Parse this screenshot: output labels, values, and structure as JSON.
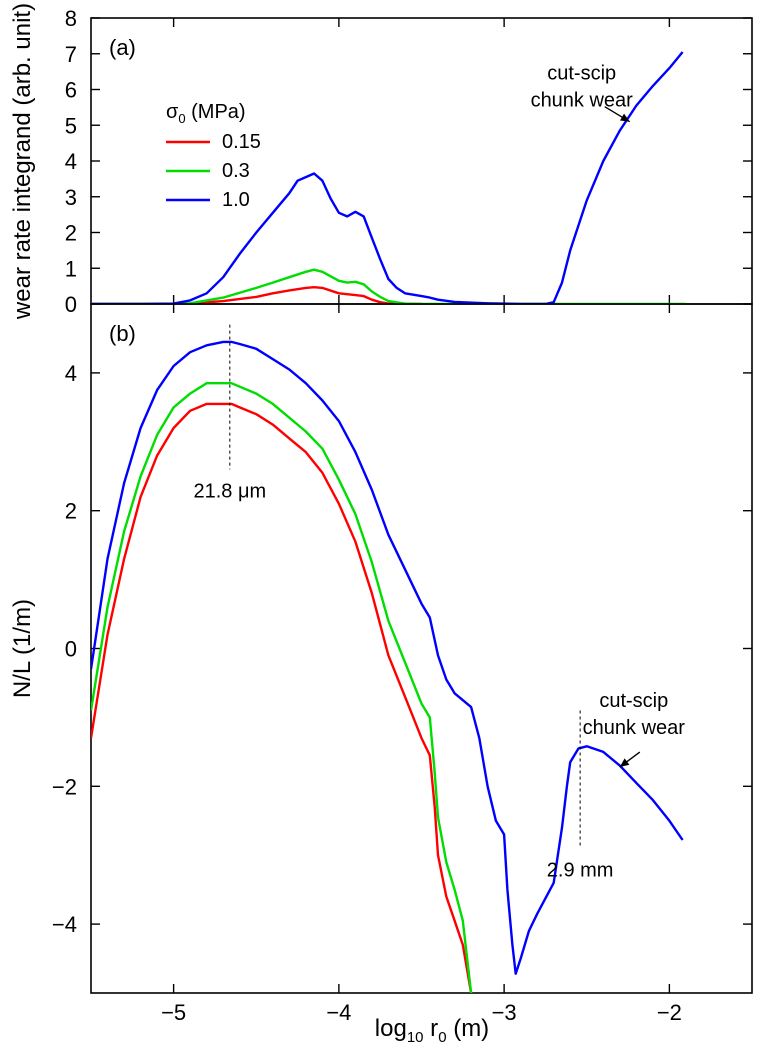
{
  "chart_data": [
    {
      "panel": "a",
      "type": "line",
      "panel_label": "(a)",
      "ylabel": "wear rate integrand  (arb. unit)",
      "xlim": [
        -5.5,
        -1.5
      ],
      "ylim": [
        0,
        8
      ],
      "xticks": [
        -5,
        -4,
        -3,
        -2
      ],
      "yticks": [
        0,
        1,
        2,
        3,
        4,
        5,
        6,
        7,
        8
      ],
      "legend": {
        "title_symbol": "σ",
        "title_subscript": "0",
        "title_rest": " (MPa)",
        "placement": "upper-left"
      },
      "series": [
        {
          "name": "0.15",
          "color": "#ff0000",
          "x": [
            -5.5,
            -5.2,
            -5.0,
            -4.9,
            -4.7,
            -4.5,
            -4.4,
            -4.3,
            -4.2,
            -4.15,
            -4.1,
            -4.0,
            -3.9,
            -3.85,
            -3.8,
            -3.75,
            -3.7,
            -3.6,
            -3.5
          ],
          "y": [
            0,
            0,
            0,
            0.01,
            0.08,
            0.2,
            0.3,
            0.38,
            0.45,
            0.47,
            0.45,
            0.3,
            0.25,
            0.22,
            0.12,
            0.05,
            0.01,
            0,
            0
          ]
        },
        {
          "name": "0.3",
          "color": "#00dd00",
          "x": [
            -5.5,
            -5.2,
            -5.0,
            -4.9,
            -4.7,
            -4.5,
            -4.4,
            -4.3,
            -4.2,
            -4.15,
            -4.1,
            -4.0,
            -3.95,
            -3.9,
            -3.85,
            -3.8,
            -3.75,
            -3.7,
            -3.6,
            -3.5,
            -3.0,
            -2.0,
            -1.9
          ],
          "y": [
            0,
            0,
            0,
            0.02,
            0.18,
            0.45,
            0.6,
            0.75,
            0.9,
            0.96,
            0.9,
            0.65,
            0.6,
            0.62,
            0.55,
            0.35,
            0.2,
            0.08,
            0.01,
            0,
            0,
            0,
            0
          ]
        },
        {
          "name": "1.0",
          "color": "#0000ff",
          "x": [
            -5.5,
            -5.2,
            -5.0,
            -4.9,
            -4.8,
            -4.7,
            -4.6,
            -4.5,
            -4.4,
            -4.3,
            -4.25,
            -4.2,
            -4.15,
            -4.1,
            -4.05,
            -4.0,
            -3.95,
            -3.9,
            -3.85,
            -3.8,
            -3.75,
            -3.7,
            -3.65,
            -3.6,
            -3.5,
            -3.45,
            -3.4,
            -3.3,
            -3.1,
            -2.9,
            -2.75,
            -2.7,
            -2.65,
            -2.6,
            -2.5,
            -2.4,
            -2.3,
            -2.2,
            -2.1,
            -2.0,
            -1.92
          ],
          "y": [
            0,
            0,
            0.01,
            0.1,
            0.3,
            0.75,
            1.4,
            2.0,
            2.55,
            3.1,
            3.45,
            3.55,
            3.65,
            3.45,
            2.95,
            2.55,
            2.45,
            2.58,
            2.45,
            1.85,
            1.25,
            0.7,
            0.45,
            0.3,
            0.22,
            0.18,
            0.12,
            0.06,
            0.02,
            0,
            0,
            0.05,
            0.6,
            1.5,
            2.9,
            4.0,
            4.85,
            5.55,
            6.1,
            6.6,
            7.05
          ]
        }
      ],
      "annotations": [
        {
          "lines": [
            "cut-scip",
            "chunk wear"
          ],
          "target_x": -2.24,
          "target_y": 5.1
        }
      ]
    },
    {
      "panel": "b",
      "type": "line",
      "panel_label": "(b)",
      "xlabel_main": "log",
      "xlabel_sub1": "10",
      "xlabel_r": " r",
      "xlabel_sub2": "0",
      "xlabel_unit": "  (m)",
      "ylabel": "N/L  (1/m)",
      "xlim": [
        -5.5,
        -1.5
      ],
      "ylim": [
        -5,
        5
      ],
      "xticks": [
        -5,
        -4,
        -3,
        -2
      ],
      "yticks": [
        -4,
        -2,
        0,
        2,
        4
      ],
      "series": [
        {
          "name": "0.15",
          "color": "#ff0000",
          "x": [
            -5.5,
            -5.4,
            -5.3,
            -5.2,
            -5.1,
            -5.0,
            -4.9,
            -4.8,
            -4.7,
            -4.65,
            -4.6,
            -4.5,
            -4.4,
            -4.3,
            -4.2,
            -4.1,
            -4.0,
            -3.9,
            -3.8,
            -3.7,
            -3.6,
            -3.5,
            -3.45,
            -3.42,
            -3.4,
            -3.35,
            -3.3,
            -3.25,
            -3.2
          ],
          "y": [
            -1.3,
            0.2,
            1.3,
            2.2,
            2.8,
            3.2,
            3.45,
            3.55,
            3.55,
            3.55,
            3.5,
            3.4,
            3.25,
            3.05,
            2.85,
            2.55,
            2.1,
            1.55,
            0.8,
            -0.1,
            -0.7,
            -1.3,
            -1.55,
            -2.3,
            -3.0,
            -3.6,
            -3.95,
            -4.3,
            -5.0
          ]
        },
        {
          "name": "0.3",
          "color": "#00dd00",
          "x": [
            -5.5,
            -5.4,
            -5.3,
            -5.2,
            -5.1,
            -5.0,
            -4.9,
            -4.8,
            -4.7,
            -4.65,
            -4.6,
            -4.5,
            -4.4,
            -4.3,
            -4.2,
            -4.1,
            -4.0,
            -3.9,
            -3.8,
            -3.7,
            -3.6,
            -3.5,
            -3.45,
            -3.42,
            -3.4,
            -3.35,
            -3.3,
            -3.25,
            -3.2
          ],
          "y": [
            -0.9,
            0.6,
            1.7,
            2.5,
            3.1,
            3.5,
            3.7,
            3.85,
            3.85,
            3.85,
            3.8,
            3.7,
            3.55,
            3.35,
            3.15,
            2.9,
            2.45,
            1.95,
            1.25,
            0.4,
            -0.2,
            -0.8,
            -1.0,
            -1.8,
            -2.45,
            -3.1,
            -3.5,
            -3.95,
            -5.0
          ]
        },
        {
          "name": "1.0",
          "color": "#0000ff",
          "x": [
            -5.5,
            -5.4,
            -5.3,
            -5.2,
            -5.1,
            -5.0,
            -4.9,
            -4.8,
            -4.7,
            -4.65,
            -4.6,
            -4.5,
            -4.4,
            -4.3,
            -4.2,
            -4.1,
            -4.0,
            -3.9,
            -3.8,
            -3.7,
            -3.6,
            -3.5,
            -3.45,
            -3.4,
            -3.35,
            -3.3,
            -3.2,
            -3.15,
            -3.1,
            -3.05,
            -3.0,
            -2.98,
            -2.95,
            -2.93,
            -2.9,
            -2.85,
            -2.8,
            -2.7,
            -2.65,
            -2.62,
            -2.6,
            -2.55,
            -2.5,
            -2.4,
            -2.3,
            -2.2,
            -2.1,
            -2.0,
            -1.92
          ],
          "y": [
            -0.3,
            1.3,
            2.4,
            3.2,
            3.75,
            4.1,
            4.3,
            4.4,
            4.45,
            4.45,
            4.42,
            4.35,
            4.2,
            4.05,
            3.85,
            3.6,
            3.3,
            2.85,
            2.3,
            1.65,
            1.15,
            0.65,
            0.45,
            -0.1,
            -0.45,
            -0.65,
            -0.85,
            -1.3,
            -2.0,
            -2.5,
            -2.7,
            -3.5,
            -4.3,
            -4.72,
            -4.5,
            -4.1,
            -3.85,
            -3.4,
            -2.6,
            -2.0,
            -1.65,
            -1.45,
            -1.42,
            -1.5,
            -1.7,
            -1.95,
            -2.2,
            -2.5,
            -2.78
          ]
        }
      ],
      "annotations": [
        {
          "lines": [
            "cut-scip",
            "chunk wear"
          ],
          "target_x": -2.3,
          "target_y": -1.72
        },
        {
          "lines": [
            "21.8 μm"
          ],
          "marker_x": -4.66,
          "from_y": 4.7,
          "to_y": 2.6
        },
        {
          "lines": [
            "2.9 mm"
          ],
          "marker_x": -2.54,
          "from_y": -0.9,
          "to_y": -2.9
        }
      ]
    }
  ]
}
